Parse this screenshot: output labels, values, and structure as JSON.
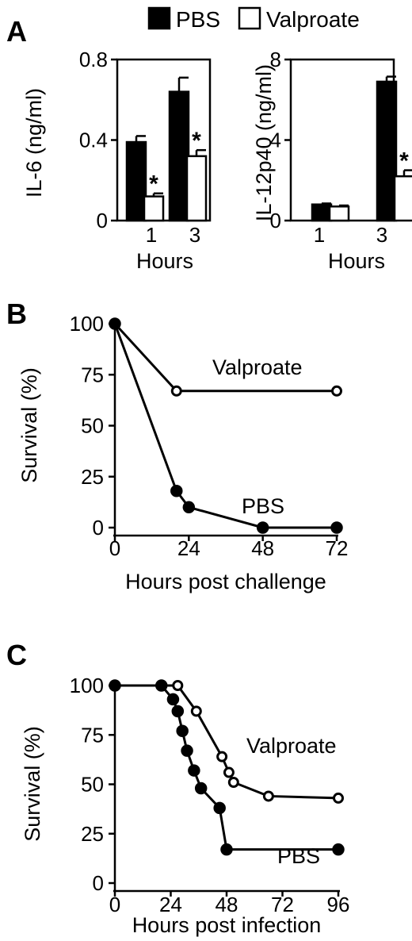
{
  "legend": [
    {
      "label": "PBS",
      "fill": "#000000"
    },
    {
      "label": "Valproate",
      "fill": "#ffffff"
    }
  ],
  "panels": {
    "A": "A",
    "B": "B",
    "C": "C"
  },
  "chart_data": [
    {
      "id": "A1",
      "type": "bar",
      "ylabel": "IL-6 (ng/ml)",
      "xlabel": "Hours",
      "categories": [
        "1",
        "3"
      ],
      "ylim": [
        0,
        0.8
      ],
      "yticks": [
        "0",
        "0.4",
        "0.8"
      ],
      "series": [
        {
          "name": "PBS",
          "values": [
            0.39,
            0.64
          ],
          "errors": [
            0.03,
            0.07
          ]
        },
        {
          "name": "Valproate",
          "values": [
            0.12,
            0.32
          ],
          "errors": [
            0.015,
            0.03
          ]
        }
      ],
      "significance": [
        {
          "category": "1",
          "label": "*"
        },
        {
          "category": "3",
          "label": "*"
        }
      ]
    },
    {
      "id": "A2",
      "type": "bar",
      "ylabel": "IL-12p40 (ng/ml)",
      "xlabel": "Hours",
      "categories": [
        "1",
        "3"
      ],
      "ylim": [
        0,
        8
      ],
      "yticks": [
        "0",
        "4",
        "8"
      ],
      "series": [
        {
          "name": "PBS",
          "values": [
            0.8,
            6.9
          ],
          "errors": [
            0.05,
            0.25
          ]
        },
        {
          "name": "Valproate",
          "values": [
            0.7,
            2.2
          ],
          "errors": [
            0.05,
            0.3
          ]
        }
      ],
      "significance": [
        {
          "category": "3",
          "label": "*"
        }
      ]
    },
    {
      "id": "B",
      "type": "line",
      "ylabel": "Survival (%)",
      "xlabel": "Hours post challenge",
      "xlim": [
        0,
        72
      ],
      "ylim": [
        0,
        100
      ],
      "xticks": [
        "0",
        "24",
        "48",
        "72"
      ],
      "yticks": [
        "0",
        "25",
        "50",
        "75",
        "100"
      ],
      "series": [
        {
          "name": "Valproate",
          "marker": "open",
          "x": [
            0,
            20,
            72
          ],
          "y": [
            100,
            67,
            67
          ]
        },
        {
          "name": "PBS",
          "marker": "filled",
          "x": [
            0,
            20,
            24,
            48,
            72
          ],
          "y": [
            100,
            18,
            10,
            0,
            0
          ]
        }
      ]
    },
    {
      "id": "C",
      "type": "line",
      "ylabel": "Survival (%)",
      "xlabel": "Hours post infection",
      "xlim": [
        0,
        96
      ],
      "ylim": [
        0,
        100
      ],
      "xticks": [
        "0",
        "24",
        "48",
        "72",
        "96"
      ],
      "yticks": [
        "0",
        "25",
        "50",
        "75",
        "100"
      ],
      "series": [
        {
          "name": "Valproate",
          "marker": "open",
          "x": [
            0,
            20,
            27,
            35,
            46,
            49,
            51,
            66,
            96
          ],
          "y": [
            100,
            100,
            100,
            87,
            64,
            56,
            51,
            44,
            43
          ]
        },
        {
          "name": "PBS",
          "marker": "filled",
          "x": [
            0,
            20,
            25,
            27,
            29,
            31,
            34,
            37,
            45,
            48,
            96
          ],
          "y": [
            100,
            100,
            93,
            87,
            77,
            67,
            57,
            48,
            38,
            17,
            17
          ]
        }
      ]
    }
  ]
}
